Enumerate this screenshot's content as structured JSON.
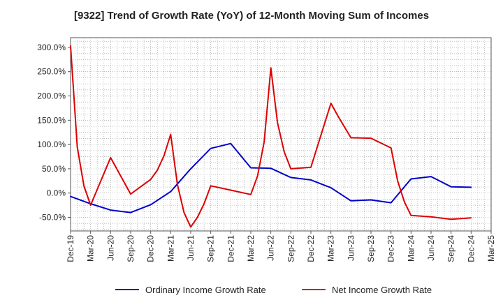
{
  "chart_data": {
    "type": "line",
    "title": "[9322]  Trend of Growth Rate (YoY) of 12-Month Moving Sum of Incomes",
    "xlabel": "",
    "ylabel": "",
    "x_tick_labels": [
      "Dec-19",
      "Mar-20",
      "Jun-20",
      "Sep-20",
      "Dec-20",
      "Mar-21",
      "Jun-21",
      "Sep-21",
      "Dec-21",
      "Mar-22",
      "Jun-22",
      "Sep-22",
      "Dec-22",
      "Mar-23",
      "Jun-23",
      "Sep-23",
      "Dec-23",
      "Mar-24",
      "Jun-24",
      "Sep-24",
      "Dec-24",
      "Mar-25"
    ],
    "x_months": [
      "2019-12",
      "2020-01",
      "2020-02",
      "2020-03",
      "2020-04",
      "2020-05",
      "2020-06",
      "2020-07",
      "2020-08",
      "2020-09",
      "2020-10",
      "2020-11",
      "2020-12",
      "2021-01",
      "2021-02",
      "2021-03",
      "2021-04",
      "2021-05",
      "2021-06",
      "2021-07",
      "2021-08",
      "2021-09",
      "2021-10",
      "2021-11",
      "2021-12",
      "2022-01",
      "2022-02",
      "2022-03",
      "2022-04",
      "2022-05",
      "2022-06",
      "2022-07",
      "2022-08",
      "2022-09",
      "2022-10",
      "2022-11",
      "2022-12",
      "2023-01",
      "2023-02",
      "2023-03",
      "2023-04",
      "2023-05",
      "2023-06",
      "2023-07",
      "2023-08",
      "2023-09",
      "2023-10",
      "2023-11",
      "2023-12",
      "2024-01",
      "2024-02",
      "2024-03",
      "2024-04",
      "2024-05",
      "2024-06",
      "2024-07",
      "2024-08",
      "2024-09",
      "2024-10",
      "2024-11",
      "2024-12",
      "2025-01",
      "2025-02",
      "2025-03"
    ],
    "y_ticks": [
      -50,
      0,
      50,
      100,
      150,
      200,
      250,
      300
    ],
    "y_tick_labels": [
      "-50.0%",
      "0.0%",
      "50.0%",
      "100.0%",
      "150.0%",
      "200.0%",
      "250.0%",
      "300.0%"
    ],
    "ylim": [
      -78,
      320
    ],
    "grid": true,
    "legend_position": "bottom",
    "series": [
      {
        "name": "Ordinary Income Growth Rate",
        "color": "#0000cc",
        "points": [
          [
            "2019-12",
            -7
          ],
          [
            "2020-03",
            -22
          ],
          [
            "2020-06",
            -35
          ],
          [
            "2020-09",
            -40
          ],
          [
            "2020-12",
            -24
          ],
          [
            "2021-03",
            3
          ],
          [
            "2021-06",
            50
          ],
          [
            "2021-09",
            92
          ],
          [
            "2021-12",
            102
          ],
          [
            "2022-03",
            52
          ],
          [
            "2022-06",
            51
          ],
          [
            "2022-09",
            32
          ],
          [
            "2022-12",
            27
          ],
          [
            "2023-03",
            11
          ],
          [
            "2023-06",
            -16
          ],
          [
            "2023-09",
            -14
          ],
          [
            "2023-12",
            -20
          ],
          [
            "2024-03",
            29
          ],
          [
            "2024-06",
            34
          ],
          [
            "2024-09",
            13
          ],
          [
            "2024-12",
            12
          ]
        ]
      },
      {
        "name": "Net Income Growth Rate",
        "color": "#dd0000",
        "points": [
          [
            "2019-12",
            303
          ],
          [
            "2020-01",
            95
          ],
          [
            "2020-02",
            15
          ],
          [
            "2020-03",
            -25
          ],
          [
            "2020-06",
            73
          ],
          [
            "2020-09",
            -2
          ],
          [
            "2020-12",
            28
          ],
          [
            "2021-01",
            47
          ],
          [
            "2021-02",
            77
          ],
          [
            "2021-03",
            121
          ],
          [
            "2021-04",
            18
          ],
          [
            "2021-05",
            -40
          ],
          [
            "2021-06",
            -70
          ],
          [
            "2021-07",
            -50
          ],
          [
            "2021-08",
            -22
          ],
          [
            "2021-09",
            15
          ],
          [
            "2021-12",
            6
          ],
          [
            "2022-03",
            -3
          ],
          [
            "2022-04",
            35
          ],
          [
            "2022-05",
            105
          ],
          [
            "2022-06",
            258
          ],
          [
            "2022-07",
            145
          ],
          [
            "2022-08",
            85
          ],
          [
            "2022-09",
            50
          ],
          [
            "2022-12",
            53
          ],
          [
            "2023-03",
            185
          ],
          [
            "2023-04",
            160
          ],
          [
            "2023-06",
            114
          ],
          [
            "2023-09",
            113
          ],
          [
            "2023-12",
            93
          ],
          [
            "2024-01",
            25
          ],
          [
            "2024-02",
            -18
          ],
          [
            "2024-03",
            -46
          ],
          [
            "2024-06",
            -49
          ],
          [
            "2024-09",
            -54
          ],
          [
            "2024-12",
            -51
          ]
        ]
      }
    ]
  }
}
